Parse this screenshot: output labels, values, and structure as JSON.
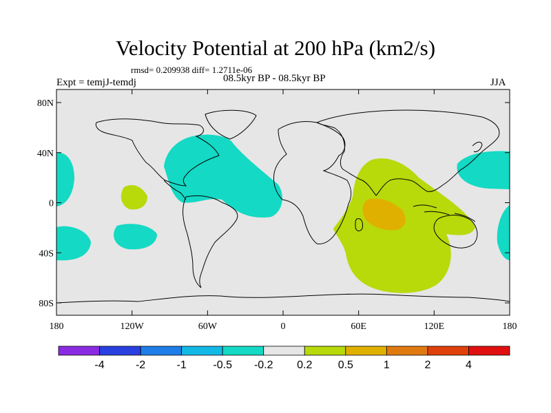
{
  "title": "Velocity Potential at 200 hPa (km2/s)",
  "stats": "rmsd= 0.209938 diff= 1.2711e-06",
  "experiment": "Expt = temjJ-temdj",
  "period": "08.5kyr BP - 08.5kyr BP",
  "season": "JJA",
  "lat_labels": [
    "80N",
    "40N",
    "0",
    "40S",
    "80S"
  ],
  "lat_values": [
    80,
    40,
    0,
    -40,
    -80
  ],
  "lon_labels": [
    "180",
    "120W",
    "60W",
    "0",
    "60E",
    "120E",
    "180"
  ],
  "lon_values": [
    -180,
    -120,
    -60,
    0,
    60,
    120,
    180
  ],
  "colorbar": {
    "colors": [
      "#8a2be2",
      "#2a3fe0",
      "#1e7de6",
      "#12b8e6",
      "#14d9c4",
      "#e6e6e6",
      "#b8d90a",
      "#e0b000",
      "#e07a10",
      "#e0400a",
      "#e01010"
    ],
    "labels": [
      "-4",
      "-2",
      "-1",
      "-0.5",
      "-0.2",
      "0.2",
      "0.5",
      "1",
      "2",
      "4"
    ]
  },
  "colors": {
    "background": "#e6e6e6",
    "negative_fill": "#14d9c4",
    "positive_fill": "#b8d90a",
    "strong_positive_fill": "#e0b000"
  }
}
